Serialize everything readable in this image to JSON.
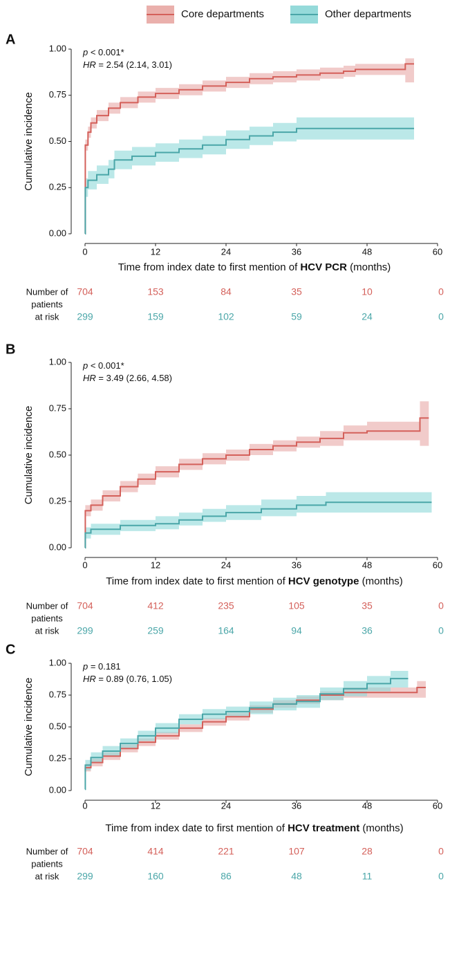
{
  "legend": [
    {
      "name": "Core departments",
      "color": "#d4605a"
    },
    {
      "name": "Other departments",
      "color": "#4aa6a8"
    }
  ],
  "chart_data": [
    {
      "type": "step",
      "panel": "A",
      "annotations": [
        [
          "p",
          " < 0.001*"
        ],
        [
          "HR",
          " = 2.54 (2.14, 3.01)"
        ]
      ],
      "ylabel": "Cumulative incidence",
      "xlabel": [
        "Time from index date to first mention of ",
        "HCV PCR",
        " (months)"
      ],
      "xlim": [
        0,
        60
      ],
      "xticks": [
        0,
        12,
        24,
        36,
        48,
        60
      ],
      "ylim": [
        0,
        1
      ],
      "yticks": [
        {
          "value": 0,
          "label": "0.00"
        },
        {
          "value": 0.25,
          "label": "0.25"
        },
        {
          "value": 0.5,
          "label": "0.50"
        },
        {
          "value": 0.75,
          "label": "0.75"
        },
        {
          "value": 1,
          "label": "1.00"
        }
      ],
      "risk_label": [
        "Number of",
        "patients",
        "at risk"
      ],
      "series": [
        {
          "color": "#d4605a",
          "band_color": "#e8a9a6",
          "x": [
            0,
            0.05,
            0.5,
            1,
            2,
            4,
            6,
            9,
            12,
            16,
            20,
            24,
            28,
            32,
            36,
            40,
            44,
            46,
            54.5,
            56
          ],
          "values": [
            0,
            0.48,
            0.55,
            0.6,
            0.64,
            0.68,
            0.71,
            0.74,
            0.76,
            0.78,
            0.8,
            0.82,
            0.84,
            0.85,
            0.86,
            0.87,
            0.88,
            0.89,
            0.92,
            0.92
          ],
          "lower": [
            0,
            0.45,
            0.52,
            0.57,
            0.61,
            0.65,
            0.68,
            0.71,
            0.73,
            0.75,
            0.77,
            0.79,
            0.81,
            0.82,
            0.83,
            0.84,
            0.85,
            0.86,
            0.82,
            0.82
          ],
          "upper": [
            0,
            0.51,
            0.58,
            0.63,
            0.67,
            0.71,
            0.74,
            0.77,
            0.79,
            0.81,
            0.83,
            0.85,
            0.87,
            0.88,
            0.89,
            0.9,
            0.91,
            0.92,
            0.95,
            0.95
          ],
          "at_risk": [
            704,
            153,
            84,
            35,
            10,
            0
          ]
        },
        {
          "color": "#4aa6a8",
          "band_color": "#8ed8d8",
          "x": [
            0,
            0.05,
            0.5,
            2,
            4,
            5,
            8,
            12,
            16,
            20,
            24,
            28,
            32,
            36,
            56
          ],
          "values": [
            0,
            0.25,
            0.29,
            0.32,
            0.35,
            0.4,
            0.42,
            0.44,
            0.46,
            0.48,
            0.51,
            0.53,
            0.55,
            0.57,
            0.57
          ],
          "lower": [
            0,
            0.2,
            0.24,
            0.27,
            0.3,
            0.35,
            0.37,
            0.39,
            0.41,
            0.43,
            0.46,
            0.48,
            0.5,
            0.51,
            0.51
          ],
          "upper": [
            0,
            0.3,
            0.34,
            0.37,
            0.4,
            0.45,
            0.47,
            0.49,
            0.51,
            0.53,
            0.56,
            0.58,
            0.6,
            0.63,
            0.63
          ],
          "at_risk": [
            299,
            159,
            102,
            59,
            24,
            0
          ]
        }
      ]
    },
    {
      "type": "step",
      "panel": "B",
      "annotations": [
        [
          "p",
          " < 0.001*"
        ],
        [
          "HR",
          " = 3.49 (2.66, 4.58)"
        ]
      ],
      "ylabel": "Cumulative incidence",
      "xlabel": [
        "Time from index date to first mention of ",
        "HCV genotype",
        " (months)"
      ],
      "xlim": [
        0,
        60
      ],
      "xticks": [
        0,
        12,
        24,
        36,
        48,
        60
      ],
      "ylim": [
        0,
        1
      ],
      "yticks": [
        {
          "value": 0,
          "label": "0.00"
        },
        {
          "value": 0.25,
          "label": "0.25"
        },
        {
          "value": 0.5,
          "label": "0.50"
        },
        {
          "value": 0.75,
          "label": "0.75"
        },
        {
          "value": 1,
          "label": "1.00"
        }
      ],
      "risk_label": [
        "Number of",
        "patients",
        "at risk"
      ],
      "series": [
        {
          "color": "#d4605a",
          "band_color": "#e8a9a6",
          "x": [
            0,
            0.05,
            1,
            3,
            6,
            9,
            12,
            16,
            20,
            24,
            28,
            32,
            36,
            40,
            44,
            48,
            57,
            58.5
          ],
          "values": [
            0,
            0.2,
            0.23,
            0.28,
            0.33,
            0.37,
            0.41,
            0.45,
            0.48,
            0.5,
            0.53,
            0.55,
            0.57,
            0.59,
            0.62,
            0.63,
            0.7,
            0.7
          ],
          "lower": [
            0,
            0.17,
            0.2,
            0.25,
            0.3,
            0.34,
            0.38,
            0.42,
            0.45,
            0.47,
            0.5,
            0.52,
            0.54,
            0.55,
            0.58,
            0.58,
            0.55,
            0.55
          ],
          "upper": [
            0,
            0.23,
            0.26,
            0.31,
            0.36,
            0.4,
            0.44,
            0.48,
            0.51,
            0.53,
            0.56,
            0.58,
            0.6,
            0.63,
            0.66,
            0.68,
            0.79,
            0.79
          ],
          "at_risk": [
            704,
            412,
            235,
            105,
            35,
            0
          ]
        },
        {
          "color": "#4aa6a8",
          "band_color": "#8ed8d8",
          "x": [
            0,
            0.05,
            1,
            6,
            12,
            16,
            20,
            24,
            30,
            36,
            41,
            59
          ],
          "values": [
            0,
            0.08,
            0.1,
            0.12,
            0.13,
            0.15,
            0.17,
            0.19,
            0.21,
            0.23,
            0.245,
            0.245
          ],
          "lower": [
            0,
            0.05,
            0.07,
            0.09,
            0.1,
            0.12,
            0.14,
            0.15,
            0.17,
            0.19,
            0.19,
            0.19
          ],
          "upper": [
            0,
            0.11,
            0.13,
            0.15,
            0.17,
            0.19,
            0.21,
            0.23,
            0.26,
            0.28,
            0.3,
            0.3
          ],
          "at_risk": [
            299,
            259,
            164,
            94,
            36,
            0
          ]
        }
      ]
    },
    {
      "type": "step",
      "panel": "C",
      "annotations": [
        [
          "p",
          " = 0.181"
        ],
        [
          "HR",
          " = 0.89 (0.76, 1.05)"
        ]
      ],
      "ylabel": "Cumulative incidence",
      "xlabel": [
        "Time from index date to first mention of ",
        "HCV treatment",
        " (months)"
      ],
      "xlim": [
        0,
        60
      ],
      "xticks": [
        0,
        12,
        24,
        36,
        48,
        60
      ],
      "ylim": [
        0,
        1
      ],
      "yticks": [
        {
          "value": 0,
          "label": "0.00"
        },
        {
          "value": 0.25,
          "label": "0.25"
        },
        {
          "value": 0.5,
          "label": "0.50"
        },
        {
          "value": 0.75,
          "label": "0.75"
        },
        {
          "value": 1,
          "label": "1.00"
        }
      ],
      "risk_label": [
        "Number of",
        "patients",
        "at risk"
      ],
      "series": [
        {
          "color": "#d4605a",
          "band_color": "#e8a9a6",
          "x": [
            0,
            0.05,
            1,
            3,
            6,
            9,
            12,
            16,
            20,
            24,
            28,
            32,
            36,
            40,
            44,
            48,
            56.5,
            58
          ],
          "values": [
            0.15,
            0.18,
            0.22,
            0.27,
            0.33,
            0.38,
            0.43,
            0.49,
            0.54,
            0.58,
            0.64,
            0.68,
            0.71,
            0.75,
            0.77,
            0.77,
            0.81,
            0.81
          ],
          "lower": [
            0.12,
            0.15,
            0.19,
            0.24,
            0.3,
            0.35,
            0.4,
            0.46,
            0.51,
            0.55,
            0.61,
            0.65,
            0.68,
            0.71,
            0.73,
            0.73,
            0.73,
            0.73
          ],
          "upper": [
            0.18,
            0.21,
            0.25,
            0.3,
            0.36,
            0.41,
            0.46,
            0.52,
            0.57,
            0.61,
            0.67,
            0.71,
            0.74,
            0.78,
            0.81,
            0.81,
            0.86,
            0.86
          ],
          "at_risk": [
            704,
            414,
            221,
            107,
            28,
            0
          ]
        },
        {
          "color": "#4aa6a8",
          "band_color": "#8ed8d8",
          "x": [
            0,
            0.05,
            1,
            3,
            6,
            9,
            12,
            16,
            20,
            24,
            28,
            32,
            36,
            40,
            44,
            48,
            52,
            55
          ],
          "values": [
            0.01,
            0.2,
            0.26,
            0.31,
            0.37,
            0.43,
            0.49,
            0.56,
            0.6,
            0.62,
            0.65,
            0.68,
            0.7,
            0.76,
            0.8,
            0.84,
            0.88,
            0.88
          ],
          "lower": [
            0.01,
            0.16,
            0.22,
            0.27,
            0.33,
            0.39,
            0.45,
            0.52,
            0.56,
            0.58,
            0.6,
            0.63,
            0.65,
            0.71,
            0.74,
            0.78,
            0.81,
            0.81
          ],
          "upper": [
            0.01,
            0.24,
            0.3,
            0.35,
            0.41,
            0.47,
            0.53,
            0.6,
            0.64,
            0.66,
            0.7,
            0.73,
            0.75,
            0.81,
            0.86,
            0.9,
            0.94,
            0.94
          ],
          "at_risk": [
            299,
            160,
            86,
            48,
            11,
            0
          ]
        }
      ]
    }
  ]
}
